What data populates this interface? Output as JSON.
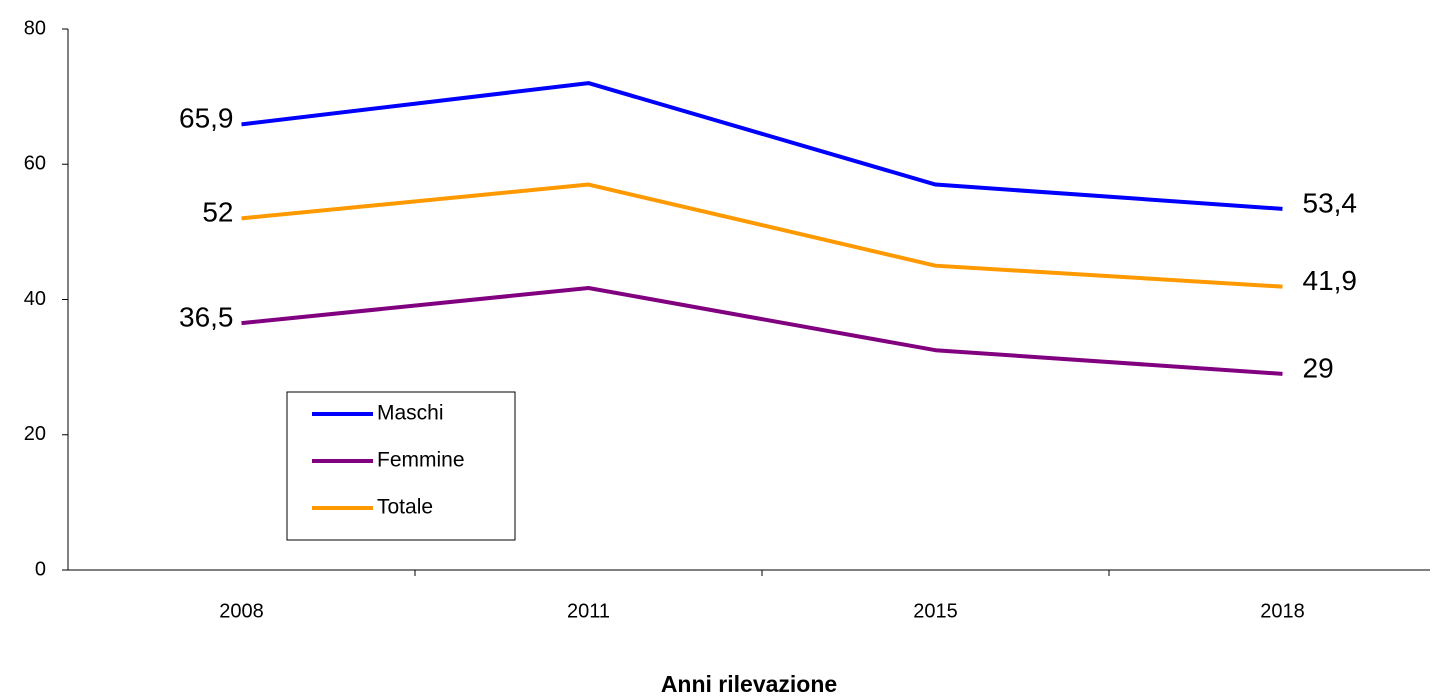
{
  "chart_data": {
    "type": "line",
    "x_label": "Anni rilevazione",
    "categories": [
      "2008",
      "2011",
      "2015",
      "2018"
    ],
    "series": [
      {
        "name": "Maschi",
        "color": "#0000ff",
        "values": [
          65.9,
          72,
          57,
          53.4
        ],
        "value_labels": [
          "65,9",
          null,
          null,
          "53,4"
        ]
      },
      {
        "name": "Femmine",
        "color": "#800080",
        "values": [
          36.5,
          41.7,
          32.5,
          29
        ],
        "value_labels": [
          "36,5",
          null,
          null,
          "29"
        ]
      },
      {
        "name": "Totale",
        "color": "#ff9900",
        "values": [
          52,
          57,
          45,
          41.9
        ],
        "value_labels": [
          "52",
          null,
          null,
          "41,9"
        ]
      }
    ],
    "ylim": [
      0,
      80
    ],
    "yticks": [
      0,
      20,
      40,
      60,
      80
    ],
    "grid": false
  }
}
